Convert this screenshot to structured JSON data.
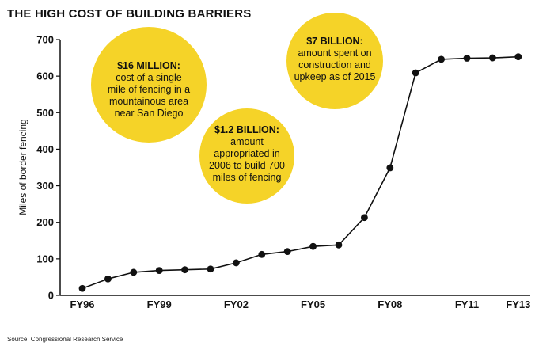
{
  "title": "THE HIGH COST OF BUILDING BARRIERS",
  "source": "Source: Congressional Research Service",
  "colors": {
    "bubble": "#f5d328",
    "line": "#111111",
    "axis": "#111111"
  },
  "annotations": [
    {
      "headline": "$16 MILLION:",
      "lines": [
        "cost of a single",
        "mile of fencing in a",
        "mountainous area",
        "near San Diego"
      ]
    },
    {
      "headline": "$1.2 BILLION:",
      "lines": [
        "amount",
        "appropriated in",
        "2006 to build 700",
        "miles of fencing"
      ]
    },
    {
      "headline": "$7 BILLION:",
      "lines": [
        "amount spent on",
        "construction and",
        "upkeep as of 2015"
      ]
    }
  ],
  "chart_data": {
    "type": "line",
    "title": "THE HIGH COST OF BUILDING BARRIERS",
    "xlabel": "",
    "ylabel": "Miles of border fencing",
    "x": [
      "FY96",
      "FY97",
      "FY98",
      "FY99",
      "FY00",
      "FY01",
      "FY02",
      "FY03",
      "FY04",
      "FY05",
      "FY06",
      "FY07",
      "FY08",
      "FY09",
      "FY10",
      "FY11",
      "FY12",
      "FY13"
    ],
    "y": [
      19,
      45,
      63,
      68,
      70,
      72,
      89,
      112,
      120,
      134,
      138,
      213,
      349,
      609,
      646,
      649,
      650,
      653
    ],
    "x_tick_labels": [
      "FY96",
      "FY99",
      "FY02",
      "FY05",
      "FY08",
      "FY11",
      "FY13"
    ],
    "y_ticks": [
      0,
      100,
      200,
      300,
      400,
      500,
      600,
      700
    ],
    "ylim": [
      0,
      700
    ],
    "grid": false,
    "legend": "none"
  }
}
